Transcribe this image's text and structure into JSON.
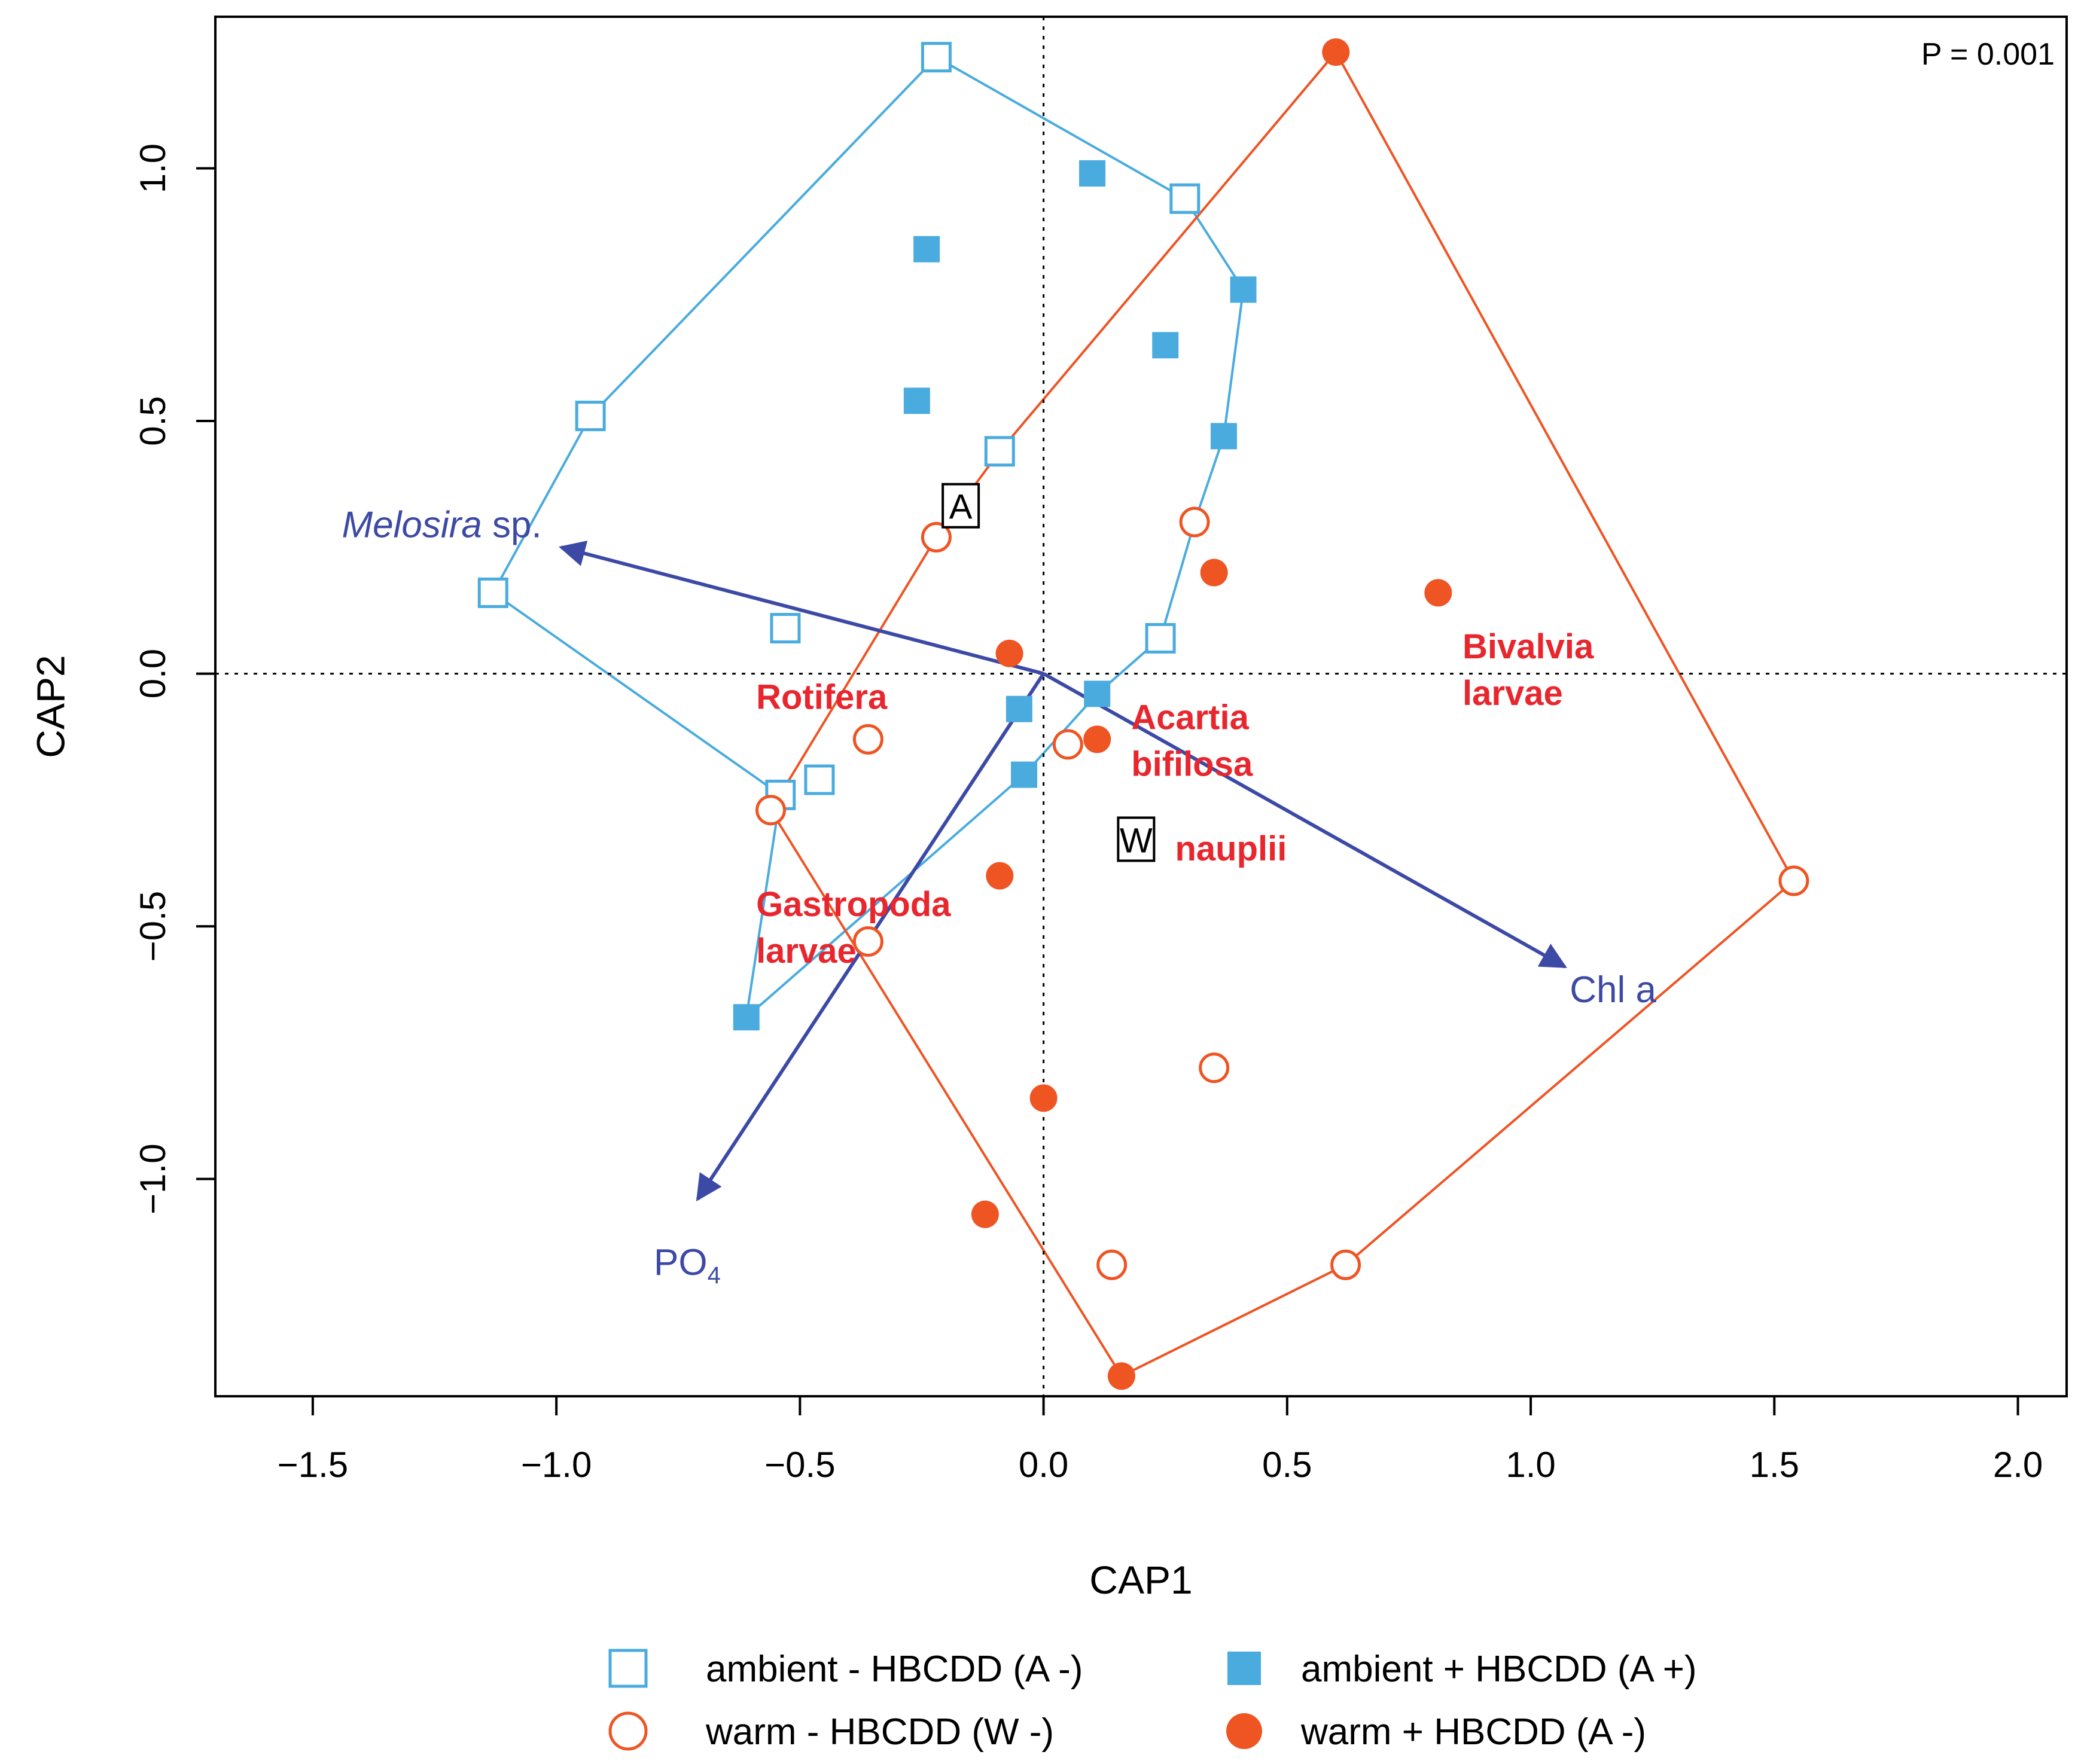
{
  "chart_data": {
    "type": "scatter",
    "title": "",
    "xlabel": "CAP1",
    "ylabel": "CAP2",
    "xlim": [
      -1.7,
      2.1
    ],
    "ylim": [
      -1.43,
      1.3
    ],
    "xticks": [
      -1.5,
      -1.0,
      -0.5,
      0.0,
      0.5,
      1.0,
      1.5,
      2.0
    ],
    "xtick_labels": [
      "−1.5",
      "−1.0",
      "−0.5",
      "0.0",
      "0.5",
      "1.0",
      "1.5",
      "2.0"
    ],
    "yticks": [
      -1.0,
      -0.5,
      0.0,
      0.5,
      1.0
    ],
    "ytick_labels": [
      "−1.0",
      "−0.5",
      "0.0",
      "0.5",
      "1.0"
    ],
    "annotation": "P = 0.001",
    "colors": {
      "ambient": "#4aabde",
      "warm": "#ef5423",
      "vector": "#3d4aa5",
      "species": "#e8262e"
    },
    "series": [
      {
        "name": "ambient - HBCDD (A -)",
        "marker": "square-open",
        "color": "#4aabde",
        "points": [
          [
            -0.22,
            1.22
          ],
          [
            0.29,
            0.94
          ],
          [
            -0.93,
            0.51
          ],
          [
            -0.09,
            0.44
          ],
          [
            -1.13,
            0.16
          ],
          [
            -0.53,
            0.09
          ],
          [
            0.24,
            0.07
          ],
          [
            -0.46,
            -0.21
          ],
          [
            -0.54,
            -0.24
          ]
        ]
      },
      {
        "name": "ambient + HBCDD (A +)",
        "marker": "square-filled",
        "color": "#4aabde",
        "points": [
          [
            0.1,
            0.99
          ],
          [
            -0.24,
            0.84
          ],
          [
            0.41,
            0.76
          ],
          [
            0.25,
            0.65
          ],
          [
            -0.26,
            0.54
          ],
          [
            0.37,
            0.47
          ],
          [
            0.11,
            -0.04
          ],
          [
            -0.05,
            -0.07
          ],
          [
            -0.04,
            -0.2
          ],
          [
            -0.61,
            -0.68
          ]
        ]
      },
      {
        "name": "warm - HBCDD (W -)",
        "marker": "circle-open",
        "color": "#ef5423",
        "points": [
          [
            0.31,
            0.3
          ],
          [
            -0.22,
            0.27
          ],
          [
            -0.36,
            -0.13
          ],
          [
            0.05,
            -0.14
          ],
          [
            -0.56,
            -0.27
          ],
          [
            1.54,
            -0.41
          ],
          [
            -0.36,
            -0.53
          ],
          [
            0.35,
            -0.78
          ],
          [
            0.14,
            -1.17
          ],
          [
            0.62,
            -1.17
          ]
        ]
      },
      {
        "name": "warm + HBCDD (A -)",
        "marker": "circle-filled",
        "color": "#ef5423",
        "points": [
          [
            0.6,
            1.23
          ],
          [
            0.35,
            0.2
          ],
          [
            0.81,
            0.16
          ],
          [
            -0.07,
            0.04
          ],
          [
            0.11,
            -0.13
          ],
          [
            -0.09,
            -0.4
          ],
          [
            0.0,
            -0.84
          ],
          [
            -0.12,
            -1.07
          ],
          [
            0.16,
            -1.39
          ]
        ]
      }
    ],
    "hulls": [
      {
        "group": "ambient",
        "color": "#4aabde",
        "points": [
          [
            -0.22,
            1.22
          ],
          [
            0.29,
            0.94
          ],
          [
            0.41,
            0.76
          ],
          [
            0.37,
            0.47
          ],
          [
            0.31,
            0.3
          ],
          [
            0.24,
            0.07
          ],
          [
            0.11,
            -0.04
          ],
          [
            -0.04,
            -0.2
          ],
          [
            -0.61,
            -0.68
          ],
          [
            -0.54,
            -0.24
          ],
          [
            -1.13,
            0.16
          ],
          [
            -0.93,
            0.51
          ]
        ]
      },
      {
        "group": "warm",
        "color": "#ef5423",
        "points": [
          [
            0.6,
            1.23
          ],
          [
            1.54,
            -0.41
          ],
          [
            0.62,
            -1.17
          ],
          [
            0.16,
            -1.39
          ],
          [
            -0.56,
            -0.27
          ],
          [
            -0.22,
            0.27
          ],
          [
            -0.09,
            0.44
          ]
        ]
      }
    ],
    "vectors": [
      {
        "name": "Melosira sp.",
        "italic_part": "Melosira",
        "rest": " sp.",
        "from": [
          0.0,
          0.0
        ],
        "to": [
          -0.99,
          0.25
        ],
        "label_at": [
          -1.03,
          0.27
        ],
        "anchor": "end"
      },
      {
        "name": "Chl a",
        "from": [
          0.0,
          0.0
        ],
        "to": [
          1.07,
          -0.58
        ],
        "label_at": [
          1.08,
          -0.65
        ],
        "anchor": "start"
      },
      {
        "name": "PO4",
        "main": "PO",
        "sub": "4",
        "from": [
          0.0,
          0.0
        ],
        "to": [
          -0.71,
          -1.04
        ],
        "label_at": [
          -0.8,
          -1.19
        ],
        "anchor": "start"
      }
    ],
    "centroids": [
      {
        "label": "A",
        "at": [
          -0.17,
          0.33
        ]
      },
      {
        "label": "W",
        "at": [
          0.19,
          -0.33
        ]
      }
    ],
    "species_labels": [
      {
        "lines": [
          "Rotifera"
        ],
        "at": [
          -0.59,
          -0.07
        ]
      },
      {
        "lines": [
          "Acartia",
          "bifilosa"
        ],
        "at": [
          0.18,
          -0.11
        ]
      },
      {
        "lines": [
          "Bivalvia",
          "larvae"
        ],
        "at": [
          0.86,
          0.03
        ]
      },
      {
        "lines": [
          "nauplii"
        ],
        "at": [
          0.27,
          -0.37
        ]
      },
      {
        "lines": [
          "Gastropoda",
          "larvae"
        ],
        "at": [
          -0.59,
          -0.48
        ]
      }
    ],
    "legend": [
      {
        "label": "ambient - HBCDD (A -)",
        "marker": "square-open",
        "color": "#4aabde"
      },
      {
        "label": "ambient + HBCDD (A +)",
        "marker": "square-filled",
        "color": "#4aabde"
      },
      {
        "label": "warm - HBCDD (W -)",
        "marker": "circle-open",
        "color": "#ef5423"
      },
      {
        "label": "warm + HBCDD (A -)",
        "marker": "circle-filled",
        "color": "#ef5423"
      }
    ]
  }
}
